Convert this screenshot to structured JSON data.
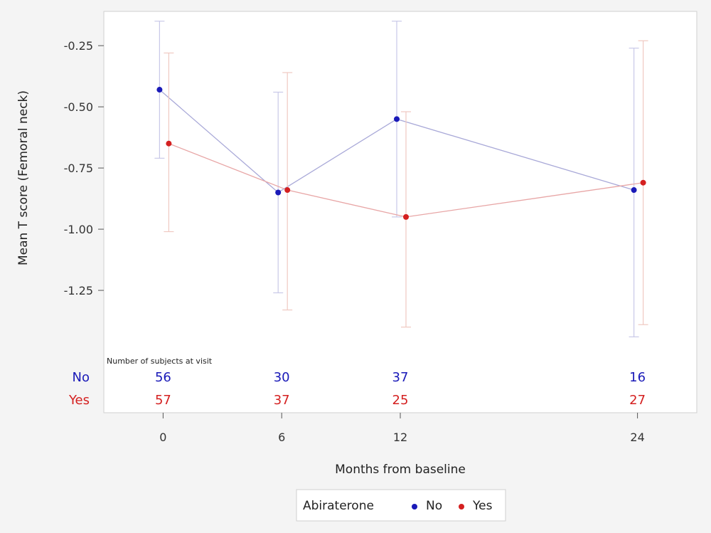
{
  "chart_data": {
    "type": "line",
    "xlabel": "Months from baseline",
    "ylabel": "Mean T score (Femoral neck)",
    "x_ticks": [
      "0",
      "6",
      "12",
      "24"
    ],
    "y_ticks": [
      "-0.25",
      "-0.50",
      "-0.75",
      "-1.00",
      "-1.25"
    ],
    "xlim": [
      -3,
      27
    ],
    "ylim": [
      -1.75,
      -0.11
    ],
    "grid": false,
    "series": [
      {
        "name": "No",
        "color": "#1a1ab8",
        "x": [
          0,
          6,
          12,
          24
        ],
        "y": [
          -0.43,
          -0.85,
          -0.55,
          -0.84
        ],
        "lower": [
          -0.71,
          -1.26,
          -0.95,
          -1.44
        ],
        "upper": [
          -0.15,
          -0.44,
          -0.15,
          -0.26
        ]
      },
      {
        "name": "Yes",
        "color": "#d42020",
        "x": [
          0,
          6,
          12,
          24
        ],
        "y": [
          -0.65,
          -0.84,
          -0.95,
          -0.81
        ],
        "lower": [
          -1.01,
          -1.33,
          -1.4,
          -1.39
        ],
        "upper": [
          -0.28,
          -0.36,
          -0.52,
          -0.23
        ]
      }
    ],
    "counts": {
      "title": "Number of subjects at visit",
      "rows": [
        {
          "label": "No",
          "values": [
            "56",
            "30",
            "37",
            "16"
          ]
        },
        {
          "label": "Yes",
          "values": [
            "57",
            "37",
            "25",
            "27"
          ]
        }
      ]
    },
    "legend": {
      "title": "Abiraterone",
      "position": "bottom-center",
      "entries": [
        "No",
        "Yes"
      ]
    }
  }
}
